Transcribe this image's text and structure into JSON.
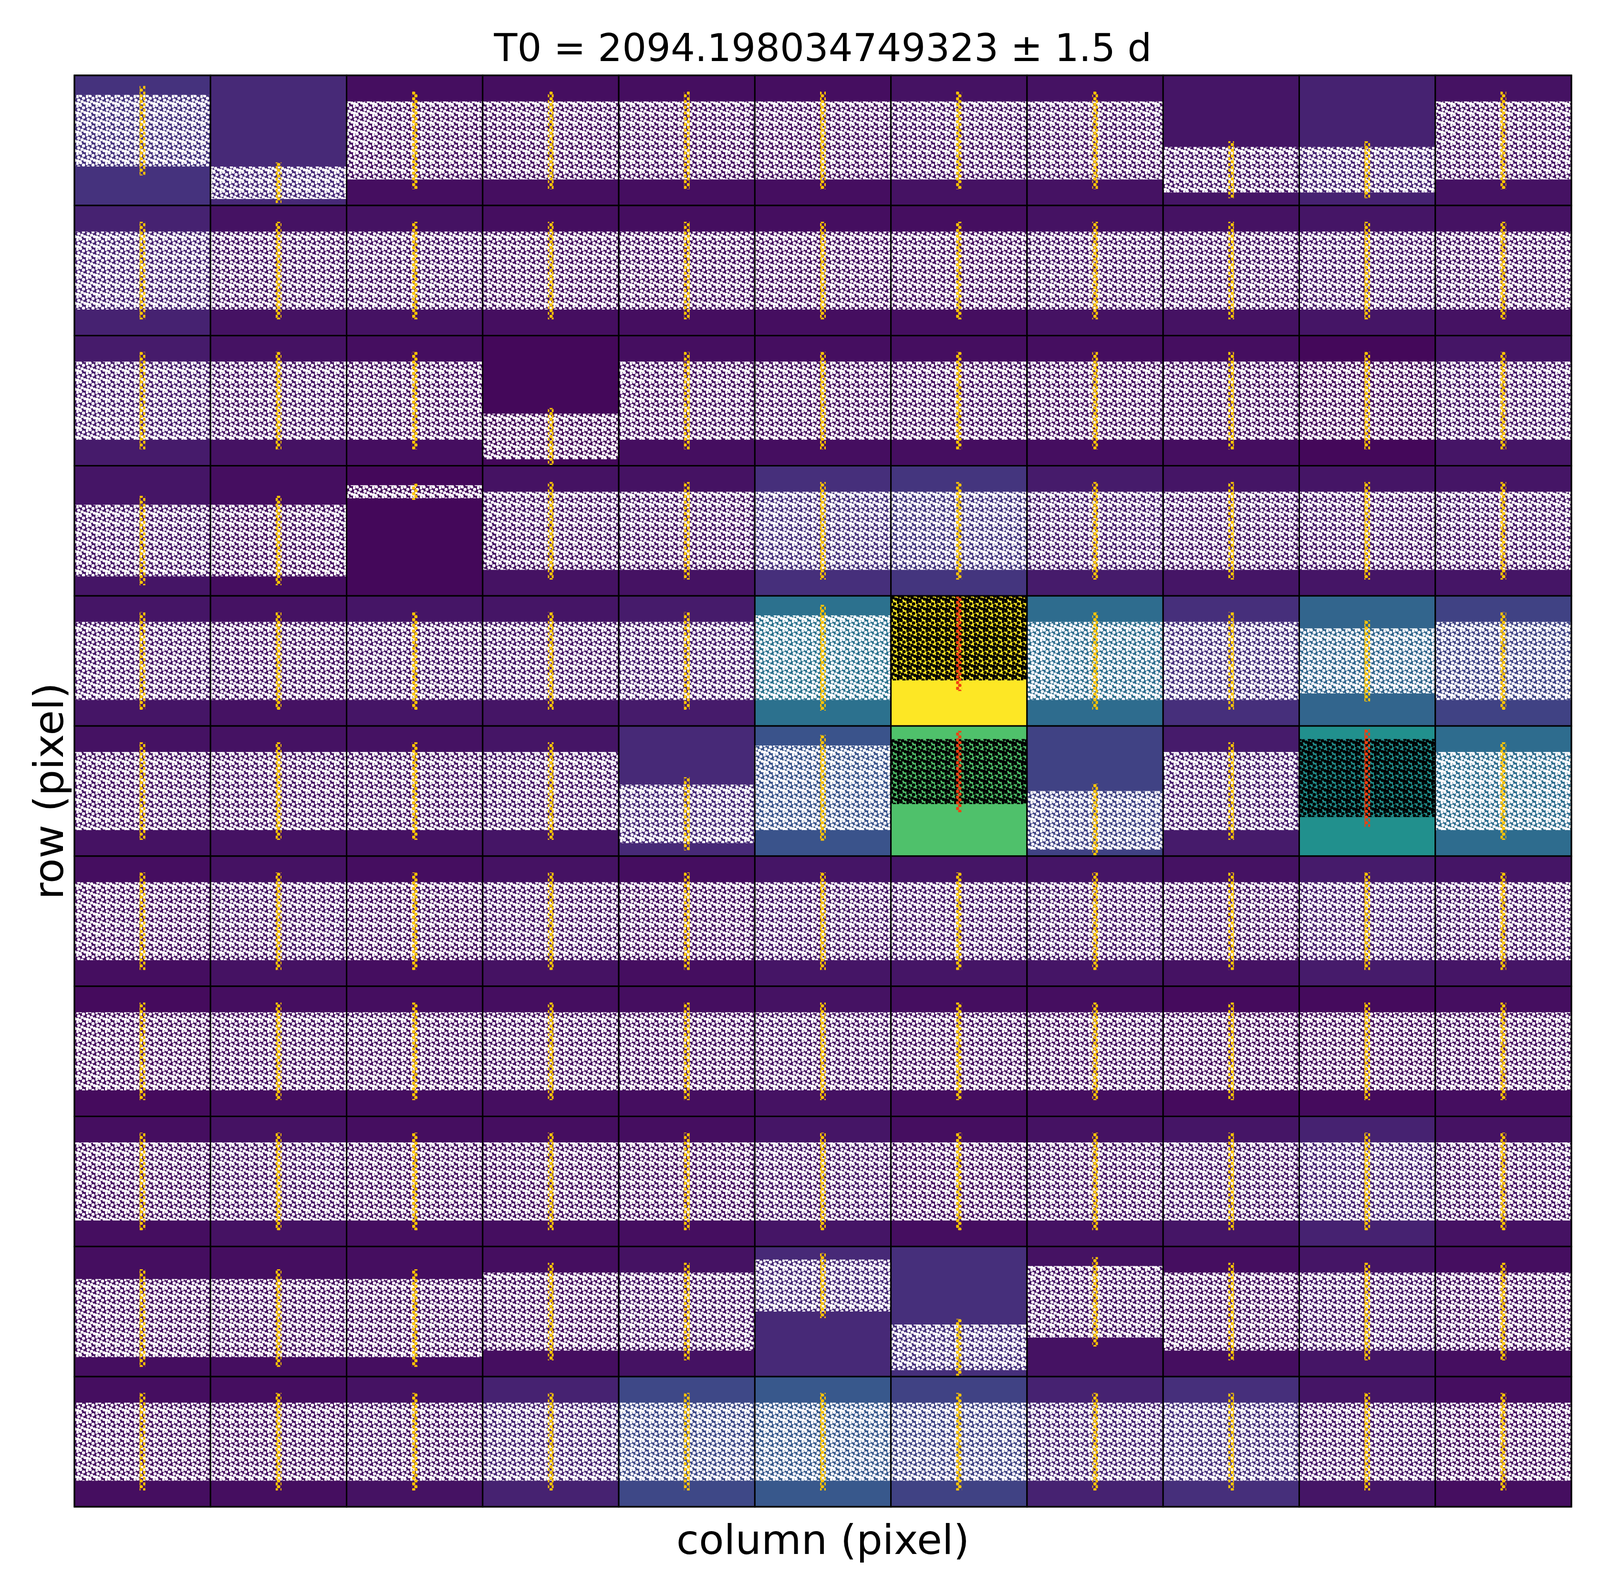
{
  "chart_data": {
    "type": "pixel_grid",
    "title": "T0 = 2094.198034749323 ± 1.5 d",
    "x_label": "column (pixel)",
    "y_label": "row (pixel)",
    "tick_labels": false,
    "t0": 2094.198034749323,
    "xlim": [
      2092.698034749323,
      2095.698034749323
    ],
    "aperture": [
      [
        4,
        6
      ],
      [
        5,
        6
      ],
      [
        5,
        9
      ]
    ],
    "cells": [
      [
        0.15,
        0.12,
        0.04,
        0.04,
        0.04,
        0.04,
        0.05,
        0.05,
        0.06,
        0.1,
        0.05
      ],
      [
        0.1,
        0.05,
        0.05,
        0.04,
        0.04,
        0.04,
        0.04,
        0.05,
        0.05,
        0.06,
        0.05
      ],
      [
        0.08,
        0.05,
        0.04,
        0.02,
        0.04,
        0.04,
        0.04,
        0.04,
        0.04,
        0.02,
        0.06
      ],
      [
        0.06,
        0.04,
        0.02,
        0.05,
        0.05,
        0.14,
        0.16,
        0.08,
        0.06,
        0.06,
        0.06
      ],
      [
        0.06,
        0.05,
        0.06,
        0.06,
        0.08,
        0.38,
        1.0,
        0.36,
        0.14,
        0.33,
        0.2
      ],
      [
        0.05,
        0.05,
        0.05,
        0.06,
        0.12,
        0.26,
        0.72,
        0.2,
        0.08,
        0.5,
        0.36
      ],
      [
        0.04,
        0.05,
        0.04,
        0.05,
        0.04,
        0.06,
        0.06,
        0.06,
        0.05,
        0.08,
        0.06
      ],
      [
        0.03,
        0.04,
        0.04,
        0.04,
        0.04,
        0.05,
        0.04,
        0.04,
        0.03,
        0.03,
        0.04
      ],
      [
        0.04,
        0.05,
        0.04,
        0.04,
        0.04,
        0.06,
        0.04,
        0.05,
        0.06,
        0.1,
        0.05
      ],
      [
        0.04,
        0.04,
        0.04,
        0.04,
        0.05,
        0.12,
        0.14,
        0.05,
        0.04,
        0.06,
        0.04
      ],
      [
        0.04,
        0.04,
        0.05,
        0.1,
        0.22,
        0.28,
        0.2,
        0.1,
        0.14,
        0.06,
        0.04
      ]
    ],
    "bands": [
      [
        [
          0.3,
          0.85
        ],
        [
          0.05,
          0.3
        ],
        [
          0.2,
          0.8
        ],
        [
          0.2,
          0.8
        ],
        [
          0.2,
          0.8
        ],
        [
          0.2,
          0.8
        ],
        [
          0.2,
          0.8
        ],
        [
          0.2,
          0.8
        ],
        [
          0.1,
          0.45
        ],
        [
          0.1,
          0.45
        ],
        [
          0.2,
          0.8
        ]
      ],
      [
        [
          0.2,
          0.8
        ],
        [
          0.2,
          0.8
        ],
        [
          0.2,
          0.8
        ],
        [
          0.2,
          0.8
        ],
        [
          0.2,
          0.8
        ],
        [
          0.2,
          0.8
        ],
        [
          0.2,
          0.8
        ],
        [
          0.2,
          0.8
        ],
        [
          0.2,
          0.8
        ],
        [
          0.2,
          0.8
        ],
        [
          0.2,
          0.8
        ]
      ],
      [
        [
          0.2,
          0.8
        ],
        [
          0.2,
          0.8
        ],
        [
          0.2,
          0.8
        ],
        [
          0.05,
          0.4
        ],
        [
          0.2,
          0.8
        ],
        [
          0.2,
          0.8
        ],
        [
          0.2,
          0.8
        ],
        [
          0.2,
          0.8
        ],
        [
          0.2,
          0.8
        ],
        [
          0.2,
          0.8
        ],
        [
          0.2,
          0.8
        ]
      ],
      [
        [
          0.15,
          0.7
        ],
        [
          0.15,
          0.7
        ],
        [
          0.75,
          0.85
        ],
        [
          0.2,
          0.8
        ],
        [
          0.2,
          0.8
        ],
        [
          0.2,
          0.8
        ],
        [
          0.2,
          0.8
        ],
        [
          0.2,
          0.8
        ],
        [
          0.2,
          0.8
        ],
        [
          0.2,
          0.8
        ],
        [
          0.2,
          0.8
        ]
      ],
      [
        [
          0.2,
          0.8
        ],
        [
          0.2,
          0.8
        ],
        [
          0.2,
          0.8
        ],
        [
          0.2,
          0.8
        ],
        [
          0.2,
          0.8
        ],
        [
          0.2,
          0.85
        ],
        [
          0.35,
          1.0
        ],
        [
          0.2,
          0.8
        ],
        [
          0.2,
          0.8
        ],
        [
          0.25,
          0.75
        ],
        [
          0.2,
          0.8
        ]
      ],
      [
        [
          0.2,
          0.8
        ],
        [
          0.2,
          0.8
        ],
        [
          0.2,
          0.8
        ],
        [
          0.2,
          0.8
        ],
        [
          0.1,
          0.55
        ],
        [
          0.2,
          0.85
        ],
        [
          0.4,
          0.9
        ],
        [
          0.05,
          0.5
        ],
        [
          0.2,
          0.8
        ],
        [
          0.3,
          0.9
        ],
        [
          0.2,
          0.8
        ]
      ],
      [
        [
          0.2,
          0.8
        ],
        [
          0.2,
          0.8
        ],
        [
          0.2,
          0.8
        ],
        [
          0.2,
          0.8
        ],
        [
          0.2,
          0.8
        ],
        [
          0.2,
          0.8
        ],
        [
          0.2,
          0.8
        ],
        [
          0.2,
          0.8
        ],
        [
          0.2,
          0.8
        ],
        [
          0.2,
          0.8
        ],
        [
          0.2,
          0.8
        ]
      ],
      [
        [
          0.2,
          0.8
        ],
        [
          0.2,
          0.8
        ],
        [
          0.2,
          0.8
        ],
        [
          0.2,
          0.8
        ],
        [
          0.2,
          0.8
        ],
        [
          0.2,
          0.8
        ],
        [
          0.2,
          0.8
        ],
        [
          0.2,
          0.8
        ],
        [
          0.2,
          0.8
        ],
        [
          0.2,
          0.8
        ],
        [
          0.2,
          0.8
        ]
      ],
      [
        [
          0.2,
          0.8
        ],
        [
          0.2,
          0.8
        ],
        [
          0.2,
          0.8
        ],
        [
          0.2,
          0.8
        ],
        [
          0.2,
          0.8
        ],
        [
          0.2,
          0.8
        ],
        [
          0.2,
          0.8
        ],
        [
          0.2,
          0.8
        ],
        [
          0.2,
          0.8
        ],
        [
          0.2,
          0.8
        ],
        [
          0.2,
          0.8
        ]
      ],
      [
        [
          0.15,
          0.75
        ],
        [
          0.15,
          0.75
        ],
        [
          0.15,
          0.75
        ],
        [
          0.2,
          0.8
        ],
        [
          0.2,
          0.8
        ],
        [
          0.5,
          0.9
        ],
        [
          0.05,
          0.4
        ],
        [
          0.3,
          0.85
        ],
        [
          0.2,
          0.8
        ],
        [
          0.2,
          0.8
        ],
        [
          0.2,
          0.8
        ]
      ],
      [
        [
          0.2,
          0.8
        ],
        [
          0.2,
          0.8
        ],
        [
          0.2,
          0.8
        ],
        [
          0.2,
          0.8
        ],
        [
          0.2,
          0.8
        ],
        [
          0.2,
          0.8
        ],
        [
          0.2,
          0.8
        ],
        [
          0.2,
          0.8
        ],
        [
          0.2,
          0.8
        ],
        [
          0.2,
          0.8
        ],
        [
          0.2,
          0.8
        ]
      ]
    ]
  }
}
